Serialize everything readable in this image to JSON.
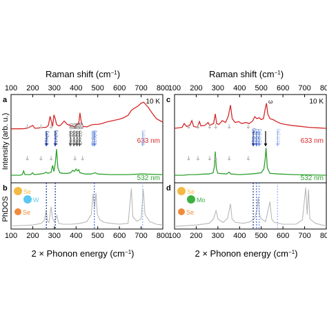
{
  "figure": {
    "top_axis_label": "Raman shift (cm",
    "bottom_axis_label": "2 × Phonon energy (cm",
    "axis_label_unit_sup": "−1",
    "axis_label_close": ")",
    "y_label_top": "Intensity (arb. u.)",
    "y_label_bottom": "PhDOS"
  },
  "chart_data": [
    {
      "type": "line",
      "panel": "a",
      "xlim": [
        100,
        800
      ],
      "ticks": [
        100,
        200,
        300,
        400,
        500,
        600,
        700,
        800
      ],
      "temperature": "10 K",
      "series": [
        {
          "name": "633 nm",
          "color": "#d62728",
          "points": [
            [
              100,
              19
            ],
            [
              150,
              19
            ],
            [
              175,
              20
            ],
            [
              200,
              26
            ],
            [
              210,
              20
            ],
            [
              235,
              21
            ],
            [
              250,
              22
            ],
            [
              262,
              22
            ],
            [
              272,
              26
            ],
            [
              280,
              45
            ],
            [
              286,
              34
            ],
            [
              292,
              24
            ],
            [
              298,
              48
            ],
            [
              304,
              40
            ],
            [
              310,
              28
            ],
            [
              320,
              25
            ],
            [
              330,
              27
            ],
            [
              345,
              35
            ],
            [
              360,
              28
            ],
            [
              380,
              25
            ],
            [
              395,
              23
            ],
            [
              405,
              28
            ],
            [
              412,
              30
            ],
            [
              418,
              52
            ],
            [
              424,
              33
            ],
            [
              432,
              24
            ],
            [
              450,
              23
            ],
            [
              470,
              27
            ],
            [
              485,
              28
            ],
            [
              500,
              28
            ],
            [
              520,
              30
            ],
            [
              540,
              33
            ],
            [
              560,
              35
            ],
            [
              580,
              37
            ],
            [
              600,
              39
            ],
            [
              620,
              42
            ],
            [
              640,
              47
            ],
            [
              655,
              57
            ],
            [
              670,
              62
            ],
            [
              685,
              66
            ],
            [
              700,
              72
            ],
            [
              712,
              74
            ],
            [
              720,
              70
            ],
            [
              735,
              62
            ],
            [
              750,
              52
            ],
            [
              770,
              40
            ],
            [
              790,
              35
            ],
            [
              800,
              33
            ]
          ]
        },
        {
          "name": "532 nm",
          "color": "#2ca02c",
          "points": [
            [
              100,
              0
            ],
            [
              140,
              0
            ],
            [
              152,
              1
            ],
            [
              158,
              7
            ],
            [
              164,
              1
            ],
            [
              190,
              1
            ],
            [
              200,
              4
            ],
            [
              206,
              1
            ],
            [
              235,
              2
            ],
            [
              252,
              3
            ],
            [
              262,
              5
            ],
            [
              270,
              3
            ],
            [
              285,
              5
            ],
            [
              292,
              16
            ],
            [
              298,
              6
            ],
            [
              304,
              19
            ],
            [
              310,
              42
            ],
            [
              316,
              12
            ],
            [
              325,
              4
            ],
            [
              340,
              3
            ],
            [
              360,
              3
            ],
            [
              375,
              4
            ],
            [
              385,
              8
            ],
            [
              392,
              6
            ],
            [
              400,
              10
            ],
            [
              406,
              7
            ],
            [
              412,
              9
            ],
            [
              418,
              4
            ],
            [
              440,
              2
            ],
            [
              470,
              2
            ],
            [
              488,
              4
            ],
            [
              500,
              2
            ],
            [
              560,
              1
            ],
            [
              640,
              1
            ],
            [
              700,
              2
            ],
            [
              800,
              1
            ]
          ]
        }
      ],
      "annotations": [
        {
          "label": "2TA(K)",
          "x": 263,
          "color": "#1f3d99"
        },
        {
          "label": "2LA(M)",
          "x": 304,
          "color": "#1f3d99"
        },
        {
          "label": "TA+ZO (K)",
          "x": 374,
          "color": "#555555"
        },
        {
          "label": "LA+ZO (K)",
          "x": 390,
          "color": "#555555"
        },
        {
          "label": "TA+ZO (M)",
          "x": 404,
          "color": "#555555"
        },
        {
          "label": "LA+ZO (M)",
          "x": 416,
          "color": "#555555"
        },
        {
          "label": "2LO(K)",
          "x": 484,
          "color": "#4a6fd4"
        },
        {
          "label": "2LO(K)",
          "x": 476,
          "color": "#8aa8e8"
        },
        {
          "label": "2ZO(K)",
          "x": 707,
          "color": "#9fb8ef"
        }
      ],
      "gray_arrows": [
        175,
        238,
        285,
        395,
        430
      ]
    },
    {
      "type": "line",
      "panel": "b",
      "xlim": [
        100,
        800
      ],
      "ticks": [
        100,
        200,
        300,
        400,
        500,
        600,
        700,
        800
      ],
      "atoms": [
        {
          "symbol": "Se",
          "color": "#f4b942"
        },
        {
          "symbol": "W",
          "color": "#5bc8f0"
        },
        {
          "symbol": "Se",
          "color": "#f08a3c"
        }
      ],
      "series": [
        {
          "name": "",
          "color": "#b8b8b8",
          "points": [
            [
              100,
              4
            ],
            [
              200,
              6
            ],
            [
              240,
              10
            ],
            [
              255,
              18
            ],
            [
              262,
              40
            ],
            [
              268,
              15
            ],
            [
              275,
              12
            ],
            [
              285,
              48
            ],
            [
              292,
              20
            ],
            [
              300,
              14
            ],
            [
              312,
              28
            ],
            [
              320,
              10
            ],
            [
              340,
              8
            ],
            [
              380,
              8
            ],
            [
              420,
              10
            ],
            [
              450,
              14
            ],
            [
              470,
              30
            ],
            [
              478,
              78
            ],
            [
              485,
              45
            ],
            [
              492,
              80
            ],
            [
              498,
              30
            ],
            [
              510,
              18
            ],
            [
              530,
              12
            ],
            [
              560,
              10
            ],
            [
              600,
              8
            ],
            [
              640,
              10
            ],
            [
              655,
              90
            ],
            [
              662,
              25
            ],
            [
              680,
              15
            ],
            [
              700,
              20
            ],
            [
              710,
              88
            ],
            [
              718,
              30
            ],
            [
              740,
              14
            ],
            [
              770,
              8
            ],
            [
              800,
              6
            ]
          ]
        }
      ],
      "vlines": [
        {
          "x": 263,
          "color": "#1f3d99"
        },
        {
          "x": 304,
          "color": "#1f3d99"
        },
        {
          "x": 484,
          "color": "#4a6fd4"
        },
        {
          "x": 707,
          "color": "#9fb8ef"
        }
      ]
    },
    {
      "type": "line",
      "panel": "c",
      "xlim": [
        100,
        800
      ],
      "ticks": [
        100,
        200,
        300,
        400,
        500,
        600,
        700,
        800
      ],
      "temperature": "10 K",
      "series": [
        {
          "name": "633 nm",
          "color": "#d62728",
          "points": [
            [
              100,
              20
            ],
            [
              135,
              22
            ],
            [
              145,
              30
            ],
            [
              155,
              24
            ],
            [
              170,
              26
            ],
            [
              180,
              36
            ],
            [
              188,
              24
            ],
            [
              205,
              22
            ],
            [
              215,
              34
            ],
            [
              222,
              25
            ],
            [
              240,
              26
            ],
            [
              255,
              32
            ],
            [
              262,
              26
            ],
            [
              280,
              30
            ],
            [
              288,
              50
            ],
            [
              294,
              30
            ],
            [
              305,
              28
            ],
            [
              320,
              36
            ],
            [
              335,
              32
            ],
            [
              348,
              45
            ],
            [
              358,
              68
            ],
            [
              366,
              40
            ],
            [
              380,
              32
            ],
            [
              395,
              34
            ],
            [
              410,
              30
            ],
            [
              430,
              32
            ],
            [
              445,
              30
            ],
            [
              460,
              35
            ],
            [
              470,
              44
            ],
            [
              480,
              40
            ],
            [
              490,
              42
            ],
            [
              500,
              38
            ],
            [
              510,
              40
            ],
            [
              518,
              60
            ],
            [
              524,
              72
            ],
            [
              530,
              50
            ],
            [
              540,
              40
            ],
            [
              555,
              38
            ],
            [
              570,
              34
            ],
            [
              590,
              30
            ],
            [
              610,
              28
            ],
            [
              640,
              26
            ],
            [
              680,
              24
            ],
            [
              720,
              22
            ],
            [
              760,
              21
            ],
            [
              800,
              20
            ]
          ]
        },
        {
          "name": "532 nm",
          "color": "#2ca02c",
          "points": [
            [
              100,
              0
            ],
            [
              140,
              0
            ],
            [
              170,
              1
            ],
            [
              200,
              1
            ],
            [
              240,
              2
            ],
            [
              260,
              2
            ],
            [
              278,
              4
            ],
            [
              284,
              14
            ],
            [
              288,
              38
            ],
            [
              293,
              10
            ],
            [
              300,
              3
            ],
            [
              340,
              2
            ],
            [
              352,
              5
            ],
            [
              360,
              2
            ],
            [
              400,
              1
            ],
            [
              450,
              2
            ],
            [
              480,
              3
            ],
            [
              500,
              4
            ],
            [
              512,
              10
            ],
            [
              518,
              26
            ],
            [
              522,
              44
            ],
            [
              528,
              12
            ],
            [
              540,
              3
            ],
            [
              580,
              2
            ],
            [
              650,
              1
            ],
            [
              800,
              0
            ]
          ]
        }
      ],
      "annotations": [
        {
          "label": "2TO (M)",
          "x": 463,
          "color": "#1f3d99"
        },
        {
          "label": "2TO (K)",
          "x": 478,
          "color": "#4a6fd4"
        },
        {
          "label": "2LO (K)",
          "x": 490,
          "color": "#6f8fe0"
        },
        {
          "label": "2LO (M)",
          "x": 575,
          "color": "#9fb8ef"
        },
        {
          "label": "ω",
          "x": 520,
          "color": "#000000"
        }
      ],
      "gray_arrows": [
        165,
        208,
        262,
        290,
        352,
        440
      ]
    },
    {
      "type": "line",
      "panel": "d",
      "xlim": [
        100,
        800
      ],
      "ticks": [
        100,
        200,
        300,
        400,
        500,
        600,
        700,
        800
      ],
      "atoms": [
        {
          "symbol": "Se",
          "color": "#f4b942"
        },
        {
          "symbol": "Mo",
          "color": "#3cb043"
        },
        {
          "symbol": "Se",
          "color": "#f08a3c"
        }
      ],
      "series": [
        {
          "name": "",
          "color": "#b8b8b8",
          "points": [
            [
              100,
              3
            ],
            [
              200,
              6
            ],
            [
              260,
              10
            ],
            [
              280,
              20
            ],
            [
              292,
              40
            ],
            [
              300,
              20
            ],
            [
              315,
              15
            ],
            [
              325,
              12
            ],
            [
              345,
              22
            ],
            [
              358,
              55
            ],
            [
              365,
              20
            ],
            [
              380,
              12
            ],
            [
              420,
              10
            ],
            [
              450,
              14
            ],
            [
              470,
              22
            ],
            [
              480,
              40
            ],
            [
              486,
              70
            ],
            [
              492,
              30
            ],
            [
              500,
              20
            ],
            [
              520,
              14
            ],
            [
              540,
              60
            ],
            [
              548,
              20
            ],
            [
              560,
              12
            ],
            [
              600,
              8
            ],
            [
              660,
              8
            ],
            [
              690,
              18
            ],
            [
              705,
              92
            ],
            [
              712,
              30
            ],
            [
              718,
              88
            ],
            [
              724,
              20
            ],
            [
              750,
              10
            ],
            [
              780,
              6
            ],
            [
              800,
              5
            ]
          ]
        }
      ],
      "vlines": [
        {
          "x": 463,
          "color": "#1f3d99"
        },
        {
          "x": 478,
          "color": "#4a6fd4"
        },
        {
          "x": 490,
          "color": "#6f8fe0"
        },
        {
          "x": 575,
          "color": "#9fb8ef"
        }
      ]
    }
  ]
}
